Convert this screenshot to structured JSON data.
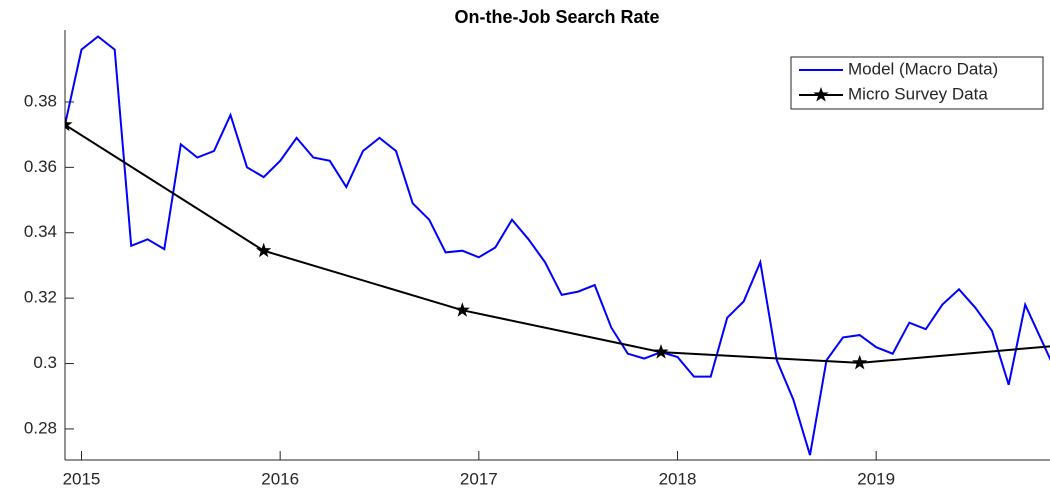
{
  "chart_data": {
    "type": "line",
    "title": "On-the-Job Search Rate",
    "xlim": [
      2014.917,
      2019.875
    ],
    "xticks": [
      2015,
      2016,
      2017,
      2018,
      2019
    ],
    "ylim": [
      0.2705,
      0.402
    ],
    "yticks": [
      0.28,
      0.3,
      0.32,
      0.34,
      0.36,
      0.38
    ],
    "grid": false,
    "legend": "top-right",
    "series": [
      {
        "name": "Model (Macro Data)",
        "color": "#0000ff",
        "marker": "none",
        "x": [
          2014.917,
          2015.0,
          2015.083,
          2015.167,
          2015.25,
          2015.333,
          2015.417,
          2015.5,
          2015.583,
          2015.667,
          2015.75,
          2015.833,
          2015.917,
          2016.0,
          2016.083,
          2016.167,
          2016.25,
          2016.333,
          2016.417,
          2016.5,
          2016.583,
          2016.667,
          2016.75,
          2016.833,
          2016.917,
          2017.0,
          2017.083,
          2017.167,
          2017.25,
          2017.333,
          2017.417,
          2017.5,
          2017.583,
          2017.667,
          2017.75,
          2017.833,
          2017.917,
          2018.0,
          2018.083,
          2018.167,
          2018.25,
          2018.333,
          2018.417,
          2018.5,
          2018.583,
          2018.667,
          2018.75,
          2018.833,
          2018.917,
          2019.0,
          2019.083,
          2019.167,
          2019.25,
          2019.333,
          2019.417,
          2019.5,
          2019.583,
          2019.667,
          2019.75,
          2019.833,
          2019.917
        ],
        "values": [
          0.373,
          0.396,
          0.4,
          0.396,
          0.336,
          0.338,
          0.335,
          0.367,
          0.363,
          0.365,
          0.376,
          0.36,
          0.357,
          0.362,
          0.369,
          0.363,
          0.362,
          0.354,
          0.365,
          0.369,
          0.365,
          0.349,
          0.344,
          0.334,
          0.3345,
          0.3325,
          0.3355,
          0.344,
          0.338,
          0.331,
          0.321,
          0.322,
          0.324,
          0.311,
          0.303,
          0.3015,
          0.3035,
          0.302,
          0.296,
          0.296,
          0.314,
          0.319,
          0.331,
          0.301,
          0.289,
          0.272,
          0.301,
          0.308,
          0.3087,
          0.305,
          0.303,
          0.3125,
          0.3105,
          0.318,
          0.3227,
          0.317,
          0.31,
          0.2935,
          0.318,
          0.307,
          0.296
        ]
      },
      {
        "name": "Micro Survey Data",
        "color": "#000000",
        "marker": "star",
        "x": [
          2014.917,
          2015.917,
          2016.917,
          2017.917,
          2018.917,
          2019.917
        ],
        "values": [
          0.373,
          0.3345,
          0.3163,
          0.3035,
          0.3002,
          0.3055
        ]
      }
    ]
  }
}
